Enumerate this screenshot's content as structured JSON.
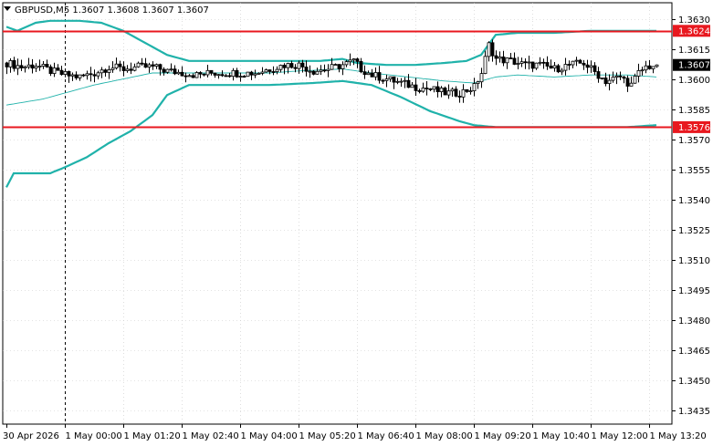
{
  "header": {
    "symbol_info": "GBPUSD,M5  1.3607 1.3608 1.3607 1.3607",
    "menu_icon": "triangle-down-icon"
  },
  "colors": {
    "background": "#ffffff",
    "candle": "#000000",
    "bollinger": "#20b2aa",
    "middle_band": "#20b2aa",
    "level_line": "#e8181f",
    "price_tag_bg": "#000000",
    "price_tag_text": "#ffffff",
    "level_tag_bg": "#e8181f"
  },
  "chart_data": {
    "type": "candlestick",
    "symbol": "GBPUSD",
    "timeframe": "M5",
    "ohlc_current": {
      "open": 1.3607,
      "high": 1.3608,
      "low": 1.3607,
      "close": 1.3607
    },
    "ylim": [
      1.3428,
      1.3638
    ],
    "y_ticks": [
      "1.3630",
      "1.3615",
      "1.3600",
      "1.3585",
      "1.3570",
      "1.3555",
      "1.3540",
      "1.3525",
      "1.3510",
      "1.3495",
      "1.3480",
      "1.3465",
      "1.3450",
      "1.3435"
    ],
    "x_tick_labels": [
      "30 Apr 2026",
      "1 May 00:00",
      "1 May 01:20",
      "1 May 02:40",
      "1 May 04:00",
      "1 May 05:20",
      "1 May 06:40",
      "1 May 08:00",
      "1 May 09:20",
      "1 May 10:40",
      "1 May 12:00",
      "1 May 13:20"
    ],
    "x_tick_bars": [
      0,
      16,
      32,
      48,
      64,
      80,
      96,
      112,
      128,
      144,
      160,
      176
    ],
    "bar_count": 179,
    "period_separator_bar": 16,
    "current_price": "1.3607",
    "horizontal_levels": [
      "1.3624",
      "1.3576"
    ],
    "close_path": [
      [
        0,
        1.3608
      ],
      [
        4,
        1.3606
      ],
      [
        8,
        1.3607
      ],
      [
        12,
        1.3604
      ],
      [
        16,
        1.3602
      ],
      [
        20,
        1.3601
      ],
      [
        24,
        1.3603
      ],
      [
        28,
        1.3606
      ],
      [
        32,
        1.3605
      ],
      [
        36,
        1.3606
      ],
      [
        40,
        1.3606
      ],
      [
        44,
        1.3604
      ],
      [
        48,
        1.3603
      ],
      [
        52,
        1.3602
      ],
      [
        56,
        1.3603
      ],
      [
        60,
        1.3603
      ],
      [
        64,
        1.3603
      ],
      [
        68,
        1.3603
      ],
      [
        72,
        1.3605
      ],
      [
        76,
        1.3607
      ],
      [
        80,
        1.3607
      ],
      [
        84,
        1.3604
      ],
      [
        88,
        1.3605
      ],
      [
        92,
        1.3607
      ],
      [
        95,
        1.3609
      ],
      [
        97,
        1.3605
      ],
      [
        100,
        1.3602
      ],
      [
        104,
        1.36
      ],
      [
        108,
        1.3598
      ],
      [
        112,
        1.3596
      ],
      [
        116,
        1.3595
      ],
      [
        120,
        1.3593
      ],
      [
        124,
        1.3593
      ],
      [
        128,
        1.3596
      ],
      [
        130,
        1.3603
      ],
      [
        132,
        1.3617
      ],
      [
        134,
        1.361
      ],
      [
        138,
        1.3609
      ],
      [
        142,
        1.3607
      ],
      [
        146,
        1.3607
      ],
      [
        150,
        1.3605
      ],
      [
        154,
        1.3607
      ],
      [
        158,
        1.3608
      ],
      [
        162,
        1.3602
      ],
      [
        164,
        1.3599
      ],
      [
        168,
        1.3601
      ],
      [
        171,
        1.3597
      ],
      [
        173,
        1.3603
      ],
      [
        175,
        1.3606
      ],
      [
        178,
        1.3607
      ]
    ],
    "bollinger_upper_path": [
      [
        0,
        1.3626
      ],
      [
        3,
        1.3624
      ],
      [
        8,
        1.3628
      ],
      [
        12,
        1.3629
      ],
      [
        16,
        1.3629
      ],
      [
        20,
        1.3629
      ],
      [
        26,
        1.3628
      ],
      [
        32,
        1.3624
      ],
      [
        38,
        1.3618
      ],
      [
        44,
        1.3612
      ],
      [
        50,
        1.3609
      ],
      [
        60,
        1.3609
      ],
      [
        70,
        1.3609
      ],
      [
        80,
        1.3609
      ],
      [
        86,
        1.3609
      ],
      [
        92,
        1.361
      ],
      [
        96,
        1.3608
      ],
      [
        104,
        1.3607
      ],
      [
        112,
        1.3607
      ],
      [
        120,
        1.3608
      ],
      [
        126,
        1.3609
      ],
      [
        130,
        1.3612
      ],
      [
        134,
        1.3622
      ],
      [
        140,
        1.3623
      ],
      [
        150,
        1.3623
      ],
      [
        160,
        1.3624
      ],
      [
        170,
        1.3624
      ],
      [
        178,
        1.3624
      ]
    ],
    "bollinger_middle_path": [
      [
        0,
        1.3587
      ],
      [
        10,
        1.359
      ],
      [
        16,
        1.3593
      ],
      [
        24,
        1.3597
      ],
      [
        32,
        1.36
      ],
      [
        40,
        1.3603
      ],
      [
        48,
        1.3603
      ],
      [
        60,
        1.3603
      ],
      [
        72,
        1.3603
      ],
      [
        80,
        1.3604
      ],
      [
        92,
        1.3605
      ],
      [
        100,
        1.3603
      ],
      [
        110,
        1.3601
      ],
      [
        120,
        1.3599
      ],
      [
        128,
        1.3598
      ],
      [
        134,
        1.3601
      ],
      [
        140,
        1.3602
      ],
      [
        150,
        1.3601
      ],
      [
        160,
        1.3602
      ],
      [
        170,
        1.3602
      ],
      [
        178,
        1.3601
      ]
    ],
    "bollinger_lower_path": [
      [
        0,
        1.3546
      ],
      [
        2,
        1.3553
      ],
      [
        6,
        1.3553
      ],
      [
        12,
        1.3553
      ],
      [
        16,
        1.3556
      ],
      [
        22,
        1.3561
      ],
      [
        28,
        1.3568
      ],
      [
        34,
        1.3574
      ],
      [
        40,
        1.3582
      ],
      [
        44,
        1.3592
      ],
      [
        50,
        1.3597
      ],
      [
        60,
        1.3597
      ],
      [
        72,
        1.3597
      ],
      [
        84,
        1.3598
      ],
      [
        92,
        1.3599
      ],
      [
        100,
        1.3597
      ],
      [
        108,
        1.3591
      ],
      [
        116,
        1.3584
      ],
      [
        124,
        1.3579
      ],
      [
        128,
        1.3577
      ],
      [
        134,
        1.3576
      ],
      [
        150,
        1.3576
      ],
      [
        170,
        1.3576
      ],
      [
        178,
        1.3577
      ]
    ]
  }
}
